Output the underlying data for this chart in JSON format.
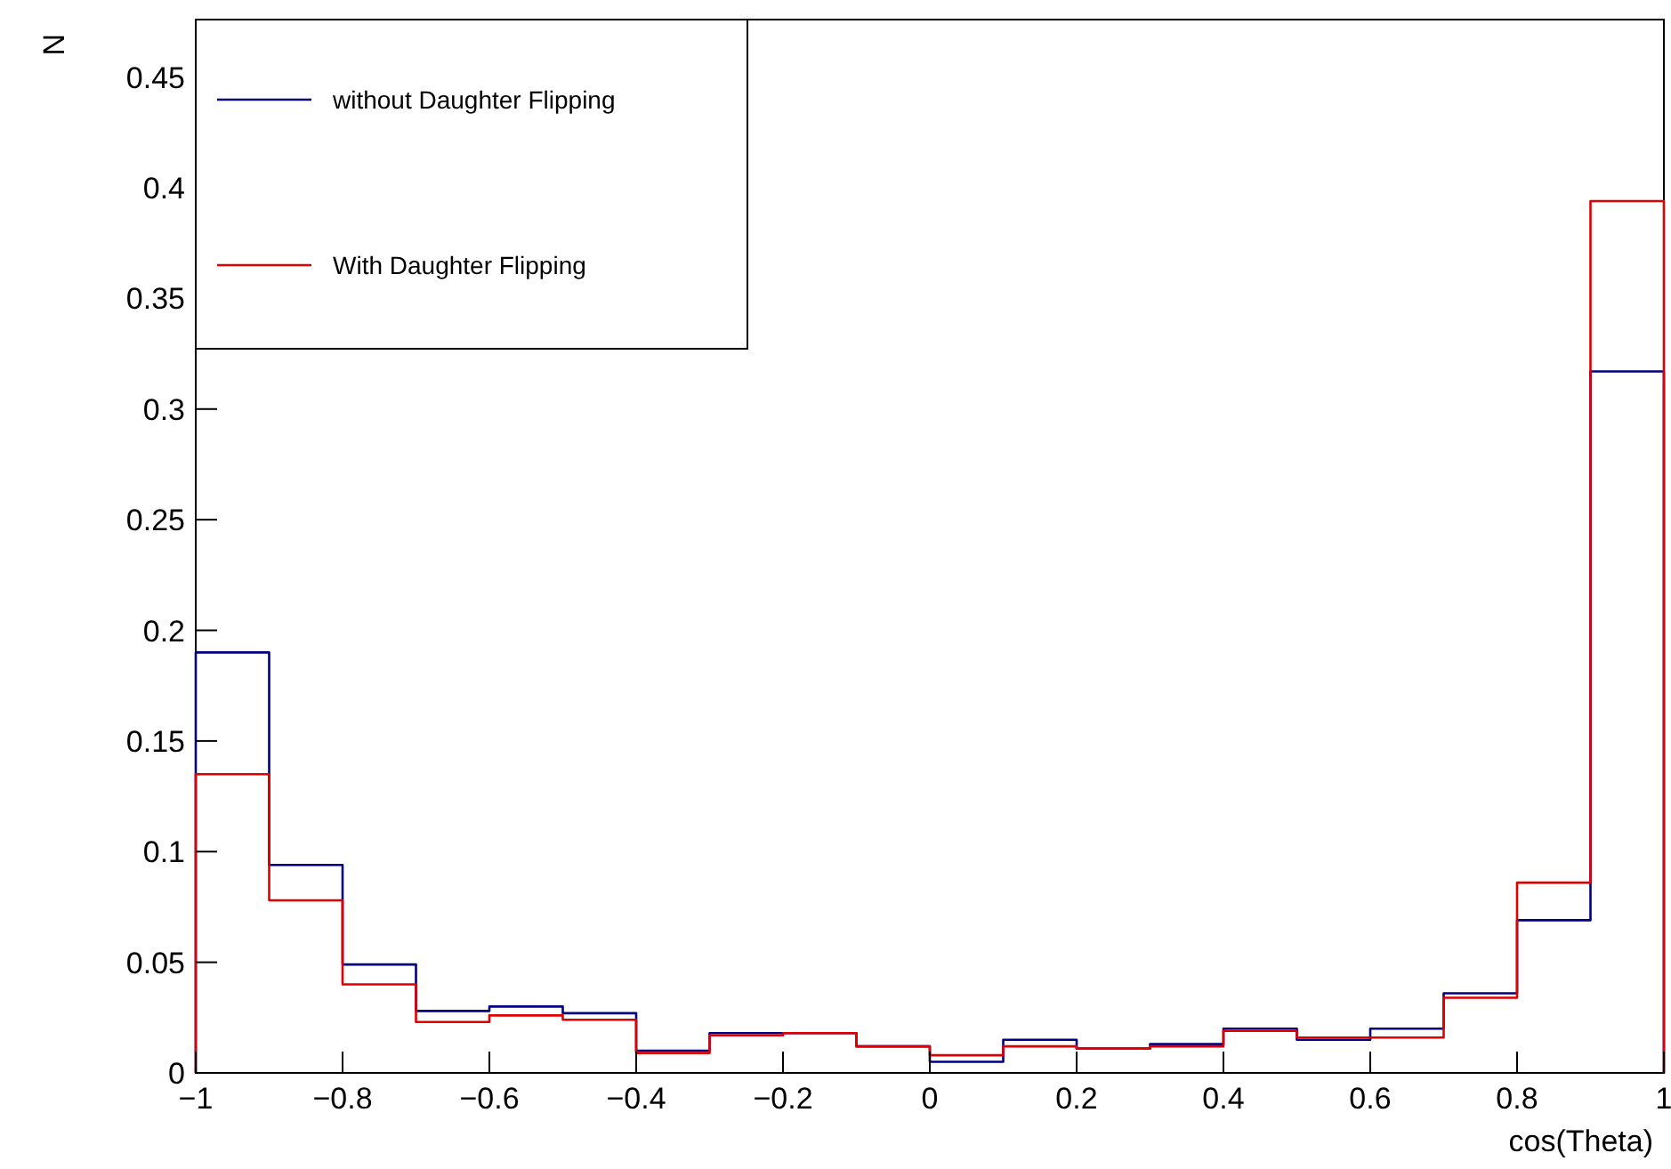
{
  "chart_data": {
    "type": "histogram",
    "xlabel": "cos(Theta)",
    "ylabel": "N",
    "bins": [
      -1,
      -0.9,
      -0.8,
      -0.7,
      -0.6,
      -0.5,
      -0.4,
      -0.3,
      -0.2,
      -0.1,
      0,
      0.1,
      0.2,
      0.3,
      0.4,
      0.5,
      0.6,
      0.7,
      0.8,
      0.9,
      1
    ],
    "series": [
      {
        "name": "without Daughter Flipping",
        "color": "#000080",
        "values": [
          0.19,
          0.094,
          0.049,
          0.028,
          0.03,
          0.027,
          0.01,
          0.018,
          0.018,
          0.012,
          0.005,
          0.015,
          0.011,
          0.013,
          0.02,
          0.015,
          0.02,
          0.036,
          0.069,
          0.317
        ]
      },
      {
        "name": "With Daughter Flipping",
        "color": "#e00000",
        "values": [
          0.135,
          0.078,
          0.04,
          0.023,
          0.026,
          0.024,
          0.009,
          0.017,
          0.018,
          0.012,
          0.008,
          0.012,
          0.011,
          0.012,
          0.019,
          0.016,
          0.016,
          0.034,
          0.086,
          0.394
        ]
      }
    ],
    "xlim": [
      -1,
      1
    ],
    "ylim": [
      0,
      0.476
    ],
    "xticks": [
      {
        "value": -1,
        "label": "−1"
      },
      {
        "value": -0.8,
        "label": "−0.8"
      },
      {
        "value": -0.6,
        "label": "−0.6"
      },
      {
        "value": -0.4,
        "label": "−0.4"
      },
      {
        "value": -0.2,
        "label": "−0.2"
      },
      0,
      0.2,
      0.4,
      0.6,
      0.8,
      1
    ],
    "yticks": [
      0,
      0.05,
      0.1,
      0.15,
      0.2,
      0.25,
      0.3,
      0.35,
      0.4,
      0.45
    ],
    "legend": "top left",
    "grid": false
  }
}
